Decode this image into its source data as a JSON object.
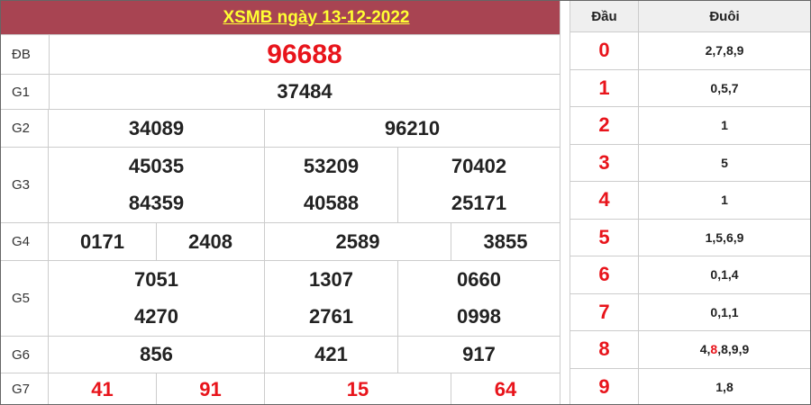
{
  "title": "XSMB ngày 13-12-2022",
  "colors": {
    "header_bg": "#a84452",
    "header_text": "#ffff33",
    "highlight": "#e8141b"
  },
  "prizes": [
    {
      "label": "ĐB",
      "lines": [
        [
          "96688"
        ]
      ],
      "red": true
    },
    {
      "label": "G1",
      "lines": [
        [
          "37484"
        ]
      ]
    },
    {
      "label": "G2",
      "lines": [
        [
          "34089",
          "96210"
        ]
      ]
    },
    {
      "label": "G3",
      "lines": [
        [
          "45035",
          "53209",
          "70402"
        ],
        [
          "84359",
          "40588",
          "25171"
        ]
      ]
    },
    {
      "label": "G4",
      "lines": [
        [
          "0171",
          "2408",
          "2589",
          "3855"
        ]
      ]
    },
    {
      "label": "G5",
      "lines": [
        [
          "7051",
          "1307",
          "0660"
        ],
        [
          "4270",
          "2761",
          "0998"
        ]
      ]
    },
    {
      "label": "G6",
      "lines": [
        [
          "856",
          "421",
          "917"
        ]
      ]
    },
    {
      "label": "G7",
      "lines": [
        [
          "41",
          "91",
          "15",
          "64"
        ]
      ],
      "red": true
    }
  ],
  "loto": {
    "head_label": "Đầu",
    "tail_label": "Đuôi",
    "rows": [
      {
        "dau": "0",
        "duoi": [
          "2",
          "7",
          "8",
          "9"
        ]
      },
      {
        "dau": "1",
        "duoi": [
          "0",
          "5",
          "7"
        ]
      },
      {
        "dau": "2",
        "duoi": [
          "1"
        ]
      },
      {
        "dau": "3",
        "duoi": [
          "5"
        ]
      },
      {
        "dau": "4",
        "duoi": [
          "1"
        ]
      },
      {
        "dau": "5",
        "duoi": [
          "1",
          "5",
          "6",
          "9"
        ]
      },
      {
        "dau": "6",
        "duoi": [
          "0",
          "1",
          "4"
        ]
      },
      {
        "dau": "7",
        "duoi": [
          "0",
          "1",
          "1"
        ]
      },
      {
        "dau": "8",
        "duoi": [
          "4",
          "8",
          "8",
          "9",
          "9"
        ],
        "highlight_index": 1
      },
      {
        "dau": "9",
        "duoi": [
          "1",
          "8"
        ]
      }
    ]
  }
}
